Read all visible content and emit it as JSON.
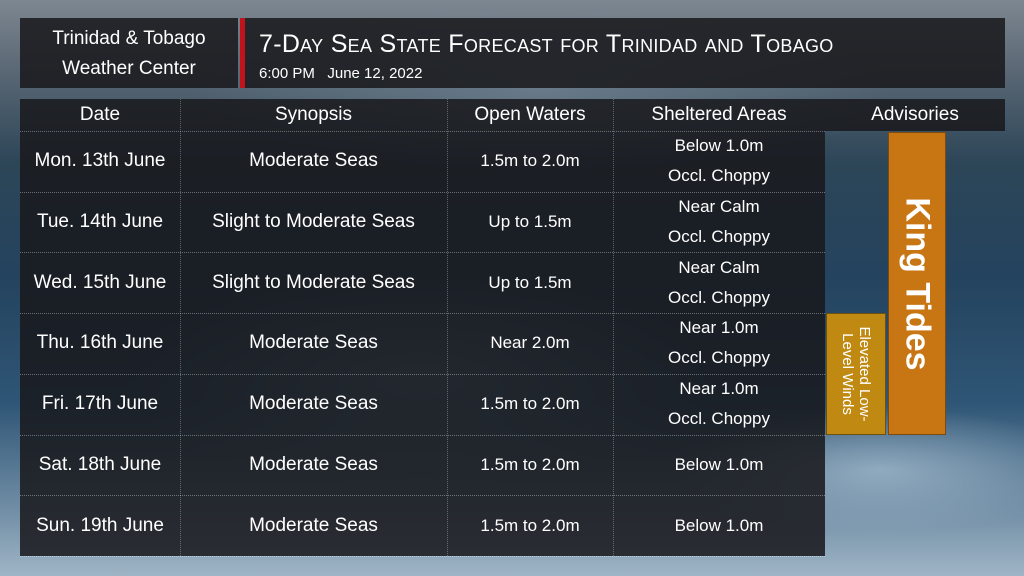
{
  "header": {
    "center_line1": "Trinidad & Tobago",
    "center_line2": "Weather Center",
    "title": "7-Day Sea State Forecast for Trinidad and Tobago",
    "subtitle": "6:00 PM   June 12, 2022",
    "accent_color": "#c0131b"
  },
  "table": {
    "columns": [
      "Date",
      "Synopsis",
      "Open Waters",
      "Sheltered Areas"
    ],
    "rows": [
      {
        "date": "Mon. 13th June",
        "synopsis": "Moderate Seas",
        "open": "1.5m to 2.0m",
        "sheltered1": "Below 1.0m",
        "sheltered2": "Occl. Choppy"
      },
      {
        "date": "Tue. 14th June",
        "synopsis": "Slight to Moderate Seas",
        "open": "Up to 1.5m",
        "sheltered1": "Near Calm",
        "sheltered2": "Occl. Choppy"
      },
      {
        "date": "Wed. 15th June",
        "synopsis": "Slight to Moderate Seas",
        "open": "Up to 1.5m",
        "sheltered1": "Near Calm",
        "sheltered2": "Occl. Choppy"
      },
      {
        "date": "Thu. 16th June",
        "synopsis": "Moderate Seas",
        "open": "Near 2.0m",
        "sheltered1": "Near 1.0m",
        "sheltered2": "Occl. Choppy"
      },
      {
        "date": "Fri. 17th June",
        "synopsis": "Moderate Seas",
        "open": "1.5m to 2.0m",
        "sheltered1": "Near 1.0m",
        "sheltered2": "Occl. Choppy"
      },
      {
        "date": "Sat. 18th June",
        "synopsis": "Moderate Seas",
        "open": "1.5m to 2.0m",
        "sheltered1": "Below 1.0m",
        "sheltered2": ""
      },
      {
        "date": "Sun. 19th June",
        "synopsis": "Moderate Seas",
        "open": "1.5m to 2.0m",
        "sheltered1": "Below 1.0m",
        "sheltered2": ""
      }
    ]
  },
  "advisories": {
    "header": "Advisories",
    "king_tides": "King Tides",
    "king_tides_color": "#c87514",
    "winds_line1": "Elevated Low-",
    "winds_line2": "Level Winds",
    "winds_color": "#c08a12"
  }
}
